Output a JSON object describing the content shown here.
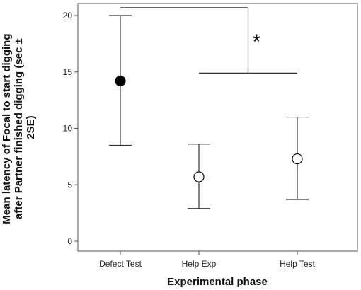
{
  "chart_data": {
    "type": "scatter",
    "title": "",
    "xlabel": "Experimental phase",
    "ylabel_lines": [
      "Mean latency of Focal to start digging",
      "after Partner finished digging (sec ±",
      "2SE)"
    ],
    "categories": [
      "Defect Test",
      "Help Exp",
      "Help Test"
    ],
    "ylim": [
      0,
      21
    ],
    "yticks": [
      0,
      5,
      10,
      15,
      20
    ],
    "grid": false,
    "points": [
      {
        "category": "Defect Test",
        "mean": 14.2,
        "lower": 8.5,
        "upper": 20.0,
        "filled": true
      },
      {
        "category": "Help Exp",
        "mean": 5.7,
        "lower": 2.9,
        "upper": 8.6,
        "filled": false
      },
      {
        "category": "Help Test",
        "mean": 7.3,
        "lower": 3.7,
        "upper": 11.0,
        "filled": false
      }
    ],
    "significance": {
      "symbol": "*",
      "from_category": "Defect Test",
      "to_categories": [
        "Help Exp",
        "Help Test"
      ],
      "upper_y": 20.7,
      "lower_y": 14.9
    }
  }
}
